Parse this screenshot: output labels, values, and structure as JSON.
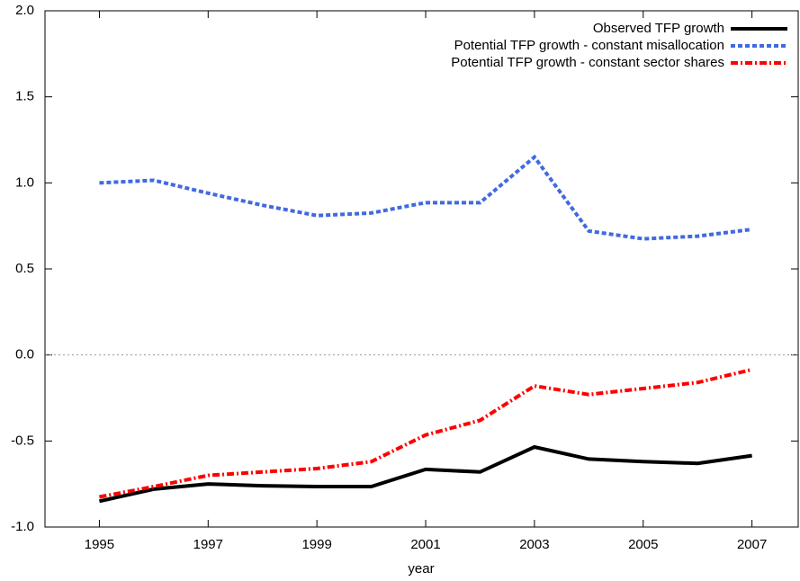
{
  "chart_data": {
    "type": "line",
    "x_label": "year",
    "x": [
      1995,
      1996,
      1997,
      1998,
      1999,
      2000,
      2001,
      2002,
      2003,
      2004,
      2005,
      2006,
      2007
    ],
    "series": [
      {
        "name": "Observed TFP growth",
        "color": "#000000",
        "style": "solid",
        "values": [
          -0.85,
          -0.78,
          -0.75,
          -0.76,
          -0.765,
          -0.765,
          -0.665,
          -0.68,
          -0.535,
          -0.605,
          -0.62,
          -0.63,
          -0.585
        ]
      },
      {
        "name": "Potential TFP growth - constant misallocation",
        "color": "#4169e1",
        "style": "dashed",
        "values": [
          1.0,
          1.015,
          0.94,
          0.87,
          0.81,
          0.825,
          0.885,
          0.885,
          1.15,
          0.72,
          0.675,
          0.69,
          0.73
        ]
      },
      {
        "name": "Potential TFP growth - constant sector shares",
        "color": "#ff0000",
        "style": "dashdot",
        "values": [
          -0.825,
          -0.765,
          -0.7,
          -0.68,
          -0.66,
          -0.62,
          -0.465,
          -0.38,
          -0.18,
          -0.23,
          -0.195,
          -0.16,
          -0.085
        ]
      }
    ],
    "xlim": [
      1994,
      2007.85
    ],
    "xticks": [
      1995,
      1997,
      1999,
      2001,
      2003,
      2005,
      2007
    ],
    "ylim": [
      -1,
      2
    ],
    "yticks": [
      {
        "value": -1,
        "label": "-1.0"
      },
      -0.5,
      {
        "value": 0,
        "label": "0.0"
      },
      0.5,
      {
        "value": 1,
        "label": "1.0"
      },
      1.5,
      {
        "value": 2,
        "label": "2.0"
      }
    ],
    "zero_line": true,
    "legend": "top-right"
  }
}
